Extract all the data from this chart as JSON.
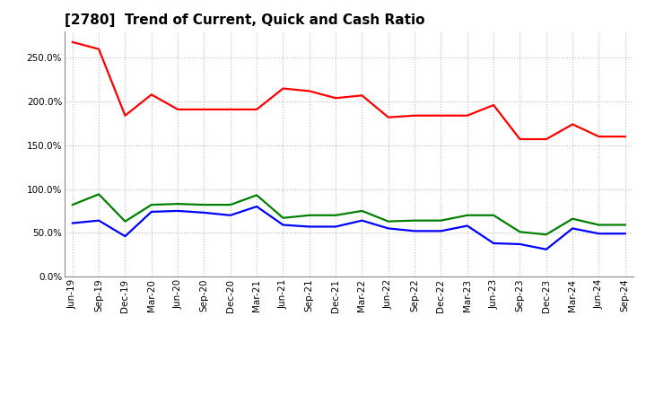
{
  "title": "[2780]  Trend of Current, Quick and Cash Ratio",
  "labels": [
    "Jun-19",
    "Sep-19",
    "Dec-19",
    "Mar-20",
    "Jun-20",
    "Sep-20",
    "Dec-20",
    "Mar-21",
    "Jun-21",
    "Sep-21",
    "Dec-21",
    "Mar-22",
    "Jun-22",
    "Sep-22",
    "Dec-22",
    "Mar-23",
    "Jun-23",
    "Sep-23",
    "Dec-23",
    "Mar-24",
    "Jun-24",
    "Sep-24"
  ],
  "current_ratio": [
    2.68,
    2.6,
    1.84,
    2.08,
    1.91,
    1.91,
    1.91,
    1.91,
    2.15,
    2.12,
    2.04,
    2.07,
    1.82,
    1.84,
    1.84,
    1.84,
    1.96,
    1.57,
    1.57,
    1.74,
    1.6,
    1.6
  ],
  "quick_ratio": [
    0.82,
    0.94,
    0.63,
    0.82,
    0.83,
    0.82,
    0.82,
    0.93,
    0.67,
    0.7,
    0.7,
    0.75,
    0.63,
    0.64,
    0.64,
    0.7,
    0.7,
    0.51,
    0.48,
    0.66,
    0.59,
    0.59
  ],
  "cash_ratio": [
    0.61,
    0.64,
    0.46,
    0.74,
    0.75,
    0.73,
    0.7,
    0.8,
    0.59,
    0.57,
    0.57,
    0.64,
    0.55,
    0.52,
    0.52,
    0.58,
    0.38,
    0.37,
    0.31,
    0.55,
    0.49,
    0.49
  ],
  "current_color": "#FF0000",
  "quick_color": "#008000",
  "cash_color": "#0000FF",
  "ylim": [
    0.0,
    2.8
  ],
  "yticks": [
    0.0,
    0.5,
    1.0,
    1.5,
    2.0,
    2.5
  ],
  "background_color": "#FFFFFF",
  "plot_bg_color": "#FFFFFF",
  "grid_color": "#BBBBBB",
  "linewidth": 1.6,
  "title_fontsize": 11,
  "tick_fontsize": 7.5,
  "legend_fontsize": 9
}
